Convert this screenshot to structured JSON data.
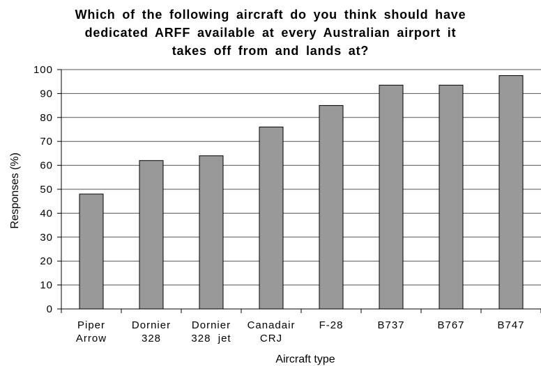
{
  "chart_data": {
    "type": "bar",
    "title_lines": [
      "Which of the following aircraft do you think should have",
      "dedicated ARFF available at every Australian airport it",
      "takes off from and lands at?"
    ],
    "xlabel": "Aircraft type",
    "ylabel": "Responses (%)",
    "categories": [
      [
        "Piper",
        "Arrow"
      ],
      [
        "Dornier",
        "328"
      ],
      [
        "Dornier",
        "328  jet"
      ],
      [
        "Canadair",
        "CRJ"
      ],
      [
        "F-28"
      ],
      [
        "B737"
      ],
      [
        "B767"
      ],
      [
        "B747"
      ]
    ],
    "values": [
      48,
      62,
      64,
      76,
      85,
      93.5,
      93.5,
      97.5
    ],
    "ylim": [
      0,
      100
    ],
    "yticks": [
      "0",
      "10",
      "20",
      "30",
      "40",
      "50",
      "60",
      "70",
      "80",
      "90",
      "100"
    ],
    "grid": true,
    "legend": "none",
    "bar_color": "#999999",
    "grid_color": "#555555"
  }
}
